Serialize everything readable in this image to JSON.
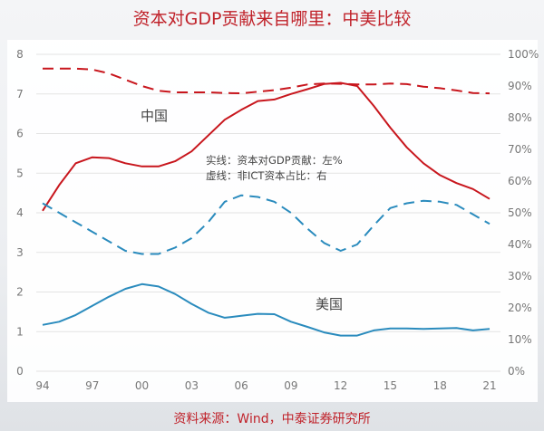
{
  "title": "资本对GDP贡献来自哪里：中美比较",
  "source": "资料来源：Wind，中泰证券研究所",
  "chart_data": {
    "type": "line",
    "title": "资本对GDP贡献来自哪里：中美比较",
    "x": [
      1994,
      1995,
      1996,
      1997,
      1998,
      1999,
      2000,
      2001,
      2002,
      2003,
      2004,
      2005,
      2006,
      2007,
      2008,
      2009,
      2010,
      2011,
      2012,
      2013,
      2014,
      2015,
      2016,
      2017,
      2018,
      2019,
      2020,
      2021
    ],
    "x_tick_labels": [
      "94",
      "97",
      "00",
      "03",
      "06",
      "09",
      "12",
      "15",
      "18",
      "21"
    ],
    "x_tick_values": [
      1994,
      1997,
      2000,
      2003,
      2006,
      2009,
      2012,
      2015,
      2018,
      2021
    ],
    "y_left": {
      "min": 0,
      "max": 8,
      "ticks": [
        "0",
        "1",
        "2",
        "3",
        "4",
        "5",
        "6",
        "7",
        "8"
      ]
    },
    "y_right": {
      "min": 0,
      "max": 100,
      "ticks": [
        "0%",
        "10%",
        "20%",
        "30%",
        "40%",
        "50%",
        "60%",
        "70%",
        "80%",
        "90%",
        "100%"
      ]
    },
    "grid": true,
    "annotations": {
      "china": "中国",
      "us": "美国",
      "legend_solid": "实线：资本对GDP贡献：左%",
      "legend_dashed": "虚线：非ICT资本占比：右"
    },
    "colors": {
      "china": "#c8161d",
      "us": "#2a8bbd"
    },
    "series": [
      {
        "name": "中国 资本对GDP贡献",
        "axis": "left",
        "style": "solid",
        "color": "#c8161d",
        "values": [
          4.05,
          4.7,
          5.25,
          5.4,
          5.38,
          5.25,
          5.17,
          5.17,
          5.3,
          5.55,
          5.95,
          6.35,
          6.6,
          6.82,
          6.86,
          7.0,
          7.12,
          7.25,
          7.28,
          7.2,
          6.7,
          6.15,
          5.65,
          5.25,
          4.95,
          4.75,
          4.6,
          4.35
        ]
      },
      {
        "name": "中国 非ICT资本占比",
        "axis": "right",
        "style": "dashed",
        "color": "#c8161d",
        "values": [
          95.5,
          95.5,
          95.5,
          95.2,
          94,
          92,
          90,
          88.5,
          88,
          88,
          88,
          87.8,
          87.7,
          88.2,
          88.7,
          89.5,
          90.5,
          90.8,
          90.7,
          90.5,
          90.5,
          90.8,
          90.6,
          89.8,
          89.3,
          88.6,
          87.8,
          87.7
        ]
      },
      {
        "name": "美国 资本对GDP贡献",
        "axis": "left",
        "style": "solid",
        "color": "#2a8bbd",
        "values": [
          1.17,
          1.25,
          1.42,
          1.65,
          1.88,
          2.08,
          2.2,
          2.14,
          1.95,
          1.7,
          1.48,
          1.35,
          1.4,
          1.45,
          1.44,
          1.25,
          1.12,
          0.98,
          0.9,
          0.9,
          1.03,
          1.08,
          1.08,
          1.07,
          1.08,
          1.09,
          1.03,
          1.07
        ]
      },
      {
        "name": "美国 非ICT资本占比",
        "axis": "right",
        "style": "dashed",
        "color": "#2a8bbd",
        "values": [
          53,
          50,
          47,
          44,
          41,
          38,
          37,
          37,
          39,
          42,
          47,
          53.5,
          55.5,
          55,
          53.5,
          50,
          45,
          40.5,
          38,
          40,
          46,
          51.5,
          53,
          53.8,
          53.5,
          52.5,
          49.5,
          46.5
        ]
      }
    ]
  }
}
